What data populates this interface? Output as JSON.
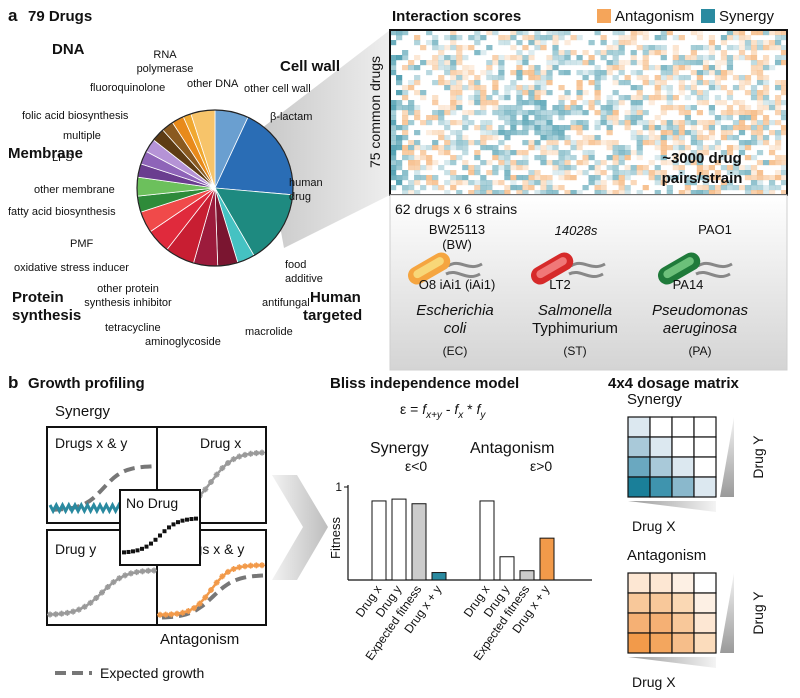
{
  "panel_a": {
    "label": "a",
    "title": "79 Drugs",
    "classes": {
      "dna": "DNA",
      "membrane": "Membrane",
      "protein": [
        "Protein",
        "synthesis"
      ],
      "cell_wall": "Cell wall",
      "human": [
        "Human",
        "targeted"
      ]
    },
    "pie_labels": {
      "rna": [
        "RNA",
        "polymerase"
      ],
      "fluoroquinolone": "fluoroquinolone",
      "other_dna": "other DNA",
      "folic": "folic acid biosynthesis",
      "multiple": "multiple",
      "lps": "LPS",
      "other_membrane": "other membrane",
      "fatty_acid": "fatty acid biosynthesis",
      "pmf": "PMF",
      "oxidative": "oxidative stress inducer",
      "other_protein": [
        "other protein",
        "synthesis inhibitor"
      ],
      "tetracycline": "tetracycline",
      "aminoglycoside": "aminoglycoside",
      "macrolide": "macrolide",
      "antifungal": "antifungal",
      "food": [
        "food",
        "additive"
      ],
      "human_drug": [
        "human",
        "drug"
      ],
      "beta_lactam": "β-lactam",
      "other_cell_wall": "other cell wall"
    },
    "heatmap": {
      "title": "Interaction scores",
      "legend": [
        "Antagonism",
        "Synergy"
      ],
      "y_label": "75 common drugs",
      "note": [
        "~3000 drug",
        "pairs/strain"
      ]
    },
    "strains": {
      "title": "62 drugs x 6 strains",
      "items": [
        {
          "top": [
            "BW25113",
            "(BW)"
          ],
          "bottom": "O8 iAi1 (iAi1)",
          "species": [
            "Escherichia",
            "coli"
          ],
          "code": "(EC)"
        },
        {
          "top": [
            "14028s"
          ],
          "bottom": "LT2",
          "species": [
            "Salmonella",
            "Typhimurium"
          ],
          "code": "(ST)"
        },
        {
          "top": [
            "PAO1"
          ],
          "bottom": "PA14",
          "species": [
            "Pseudomonas",
            "aeruginosa"
          ],
          "code": "(PA)"
        }
      ]
    }
  },
  "panel_b": {
    "label": "b",
    "growth": {
      "title": "Growth profiling",
      "synergy": "Synergy",
      "antagonism": "Antagonism",
      "boxes": [
        "Drugs x & y",
        "Drug x",
        "No Drug",
        "Drug y",
        "Drugs x & y"
      ],
      "legend": "Expected growth"
    },
    "bliss": {
      "title": "Bliss independence model",
      "formula": [
        "ε = ",
        "f",
        "x+y",
        " - ",
        "f",
        "x",
        " * ",
        "f",
        "y"
      ],
      "y_label": "Fitness",
      "ylim": [
        0,
        1
      ],
      "yticks": [
        1
      ],
      "categories": [
        "Drug x",
        "Drug y",
        "Expected fitness",
        "Drug x + y"
      ],
      "groups": [
        {
          "name": "Synergy",
          "note": "ε<0",
          "values": [
            0.85,
            0.87,
            0.82,
            0.08
          ]
        },
        {
          "name": "Antagonism",
          "note": "ε>0",
          "values": [
            0.85,
            0.25,
            0.1,
            0.45
          ]
        }
      ]
    },
    "dosage": {
      "title": "4x4 dosage matrix",
      "matrices": [
        {
          "name": "Synergy",
          "y_label": "Drug Y",
          "x_label": "Drug X"
        },
        {
          "name": "Antagonism",
          "y_label": "Drug Y",
          "x_label": "Drug X"
        }
      ]
    }
  }
}
